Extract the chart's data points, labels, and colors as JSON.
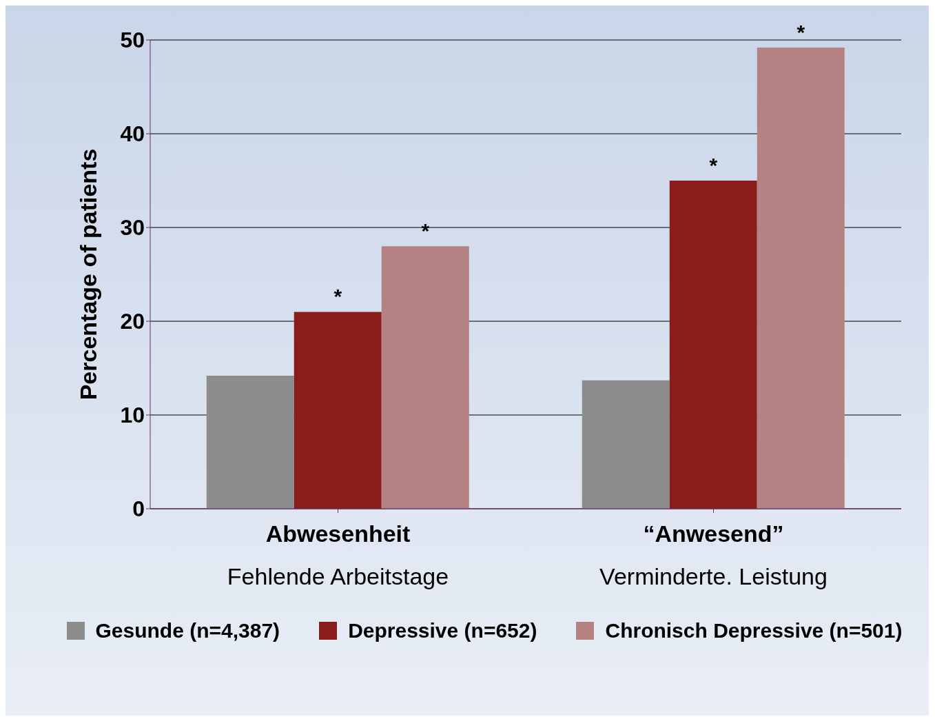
{
  "chart_data": {
    "type": "bar",
    "ylabel": "Percentage of patients",
    "categories": [
      "Abwesenheit\nFehlende Arbeitstage",
      "“Anwesend”\nVerminderte. Leistung"
    ],
    "series": [
      {
        "name": "Gesunde (n=4,387)",
        "color": "#8c8c8c",
        "values": [
          14.2,
          13.7
        ]
      },
      {
        "name": "Depressive (n=652)",
        "color": "#8b1c1c",
        "values": [
          21,
          35
        ],
        "value_labels": [
          "*",
          "*"
        ]
      },
      {
        "name": "Chronisch Depressive (n=501)",
        "color": "#b48282",
        "values": [
          28,
          49.2
        ],
        "value_labels": [
          "*",
          "*"
        ]
      }
    ],
    "ylim": [
      0,
      50
    ],
    "yticks": [
      0,
      10,
      20,
      30,
      40,
      50
    ],
    "grid": "y",
    "legend": "bottom"
  }
}
